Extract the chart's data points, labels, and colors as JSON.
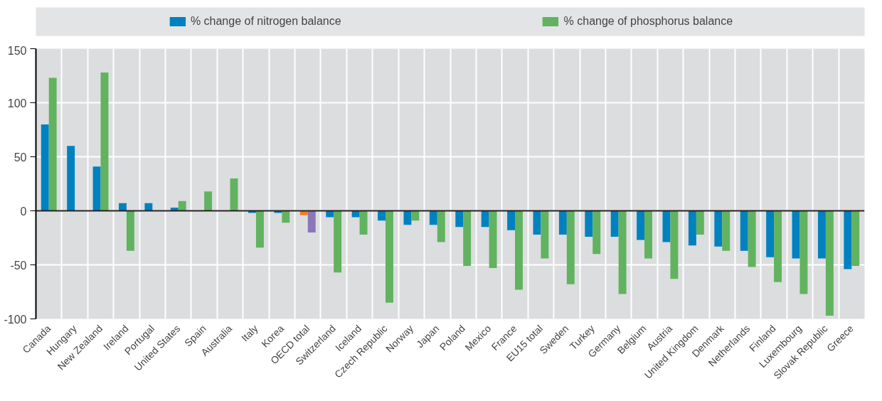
{
  "chart_data": {
    "type": "bar",
    "categories": [
      "Canada",
      "Hungary",
      "New Zealand",
      "Ireland",
      "Portugal",
      "United States",
      "Spain",
      "Australia",
      "Italy",
      "Korea",
      "OECD total",
      "Switzerland",
      "Iceland",
      "Czech Republic",
      "Norway",
      "Japan",
      "Poland",
      "Mexico",
      "France",
      "EU15 total",
      "Sweden",
      "Turkey",
      "Germany",
      "Belgium",
      "Austria",
      "United Kingdom",
      "Denmark",
      "Netherlands",
      "Finland",
      "Luxembourg",
      "Slovak Republic",
      "Greece"
    ],
    "series": [
      {
        "name": "% change of nitrogen balance",
        "color": "#0081c0",
        "colors": [
          "#0081c0",
          "#0081c0",
          "#0081c0",
          "#0081c0",
          "#0081c0",
          "#0081c0",
          "#0081c0",
          "#0081c0",
          "#0081c0",
          "#0081c0",
          "#f47b20",
          "#0081c0",
          "#0081c0",
          "#0081c0",
          "#0081c0",
          "#0081c0",
          "#0081c0",
          "#0081c0",
          "#0081c0",
          "#0081c0",
          "#0081c0",
          "#0081c0",
          "#0081c0",
          "#0081c0",
          "#0081c0",
          "#0081c0",
          "#0081c0",
          "#0081c0",
          "#0081c0",
          "#0081c0",
          "#0081c0",
          "#0081c0"
        ],
        "values": [
          80,
          60,
          41,
          7,
          7,
          3,
          0,
          0,
          -2,
          -2,
          -4,
          -6,
          -6,
          -9,
          -13,
          -13,
          -15,
          -15,
          -18,
          -22,
          -22,
          -24,
          -24,
          -27,
          -29,
          -32,
          -33,
          -37,
          -43,
          -44,
          -44,
          -54
        ]
      },
      {
        "name": "% change of phosphorus balance",
        "color": "#61b35f",
        "colors": [
          "#61b35f",
          "#61b35f",
          "#61b35f",
          "#61b35f",
          "#61b35f",
          "#61b35f",
          "#61b35f",
          "#61b35f",
          "#61b35f",
          "#61b35f",
          "#8b76b7",
          "#61b35f",
          "#61b35f",
          "#61b35f",
          "#61b35f",
          "#61b35f",
          "#61b35f",
          "#61b35f",
          "#61b35f",
          "#61b35f",
          "#61b35f",
          "#61b35f",
          "#61b35f",
          "#61b35f",
          "#61b35f",
          "#61b35f",
          "#61b35f",
          "#61b35f",
          "#61b35f",
          "#61b35f",
          "#61b35f",
          "#61b35f"
        ],
        "values": [
          123,
          null,
          128,
          -37,
          null,
          9,
          18,
          30,
          -34,
          -11,
          -20,
          -57,
          -22,
          -85,
          -9,
          -29,
          -51,
          -53,
          -73,
          -44,
          -68,
          -40,
          -77,
          -44,
          -63,
          -22,
          -37,
          -52,
          -66,
          -77,
          -97,
          -51
        ]
      }
    ],
    "ylim": [
      -100,
      150
    ],
    "yticks": [
      -100,
      -50,
      0,
      50,
      100,
      150
    ],
    "grid": true,
    "legend": "top"
  }
}
